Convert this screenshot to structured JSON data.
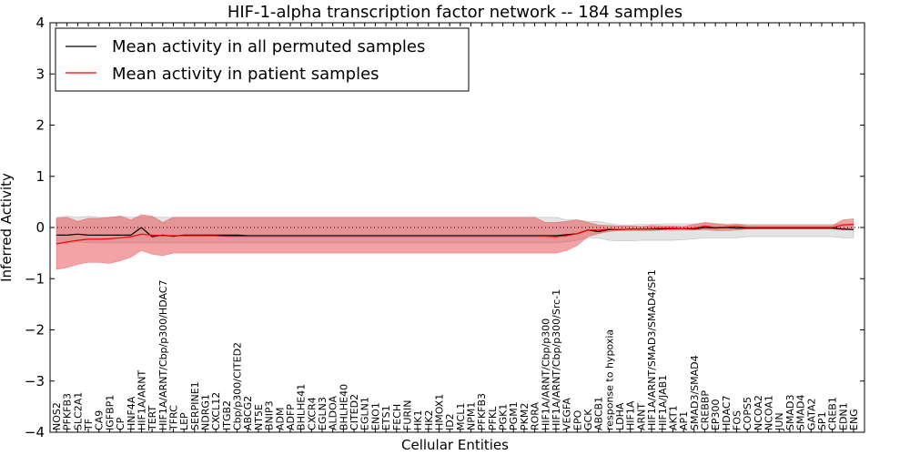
{
  "chart_data": {
    "type": "line",
    "title": "HIF-1-alpha transcription factor network -- 184 samples",
    "xlabel": "Cellular Entities",
    "ylabel": "Inferred Activity",
    "ylim": [
      -4,
      4
    ],
    "yticks": [
      "−4",
      "−3",
      "−2",
      "−1",
      "0",
      "1",
      "2",
      "3",
      "4"
    ],
    "grid": false,
    "legend_position": "top-left",
    "reference_line": 0,
    "categories": [
      "NOS2",
      "PFKFB3",
      "SLC2A1",
      "TF",
      "CA9",
      "IGFBP1",
      "CP",
      "HNF4A",
      "HIF1A/ARNT",
      "TERT",
      "HIF1A/ARNT/Cbp/p300/HDAC7",
      "TFRC",
      "LEP",
      "SERPINE1",
      "NDRG1",
      "CXCL12",
      "ITGB2",
      "Cbp/p300/CITED2",
      "ABCG2",
      "NT5E",
      "BNIP3",
      "ADM",
      "ADFP",
      "BHLHE41",
      "CXCR4",
      "EGLN3",
      "ALDOA",
      "BHLHE40",
      "CITED2",
      "EGLN1",
      "ENO1",
      "ETS1",
      "FECH",
      "FURIN",
      "HK1",
      "HK2",
      "HMOX1",
      "ID2",
      "MCL1",
      "NPM1",
      "PFKFB3",
      "PFKL",
      "PGK1",
      "PGM1",
      "PKM2",
      "RORA",
      "HIF1A/ARNT/Cbp/p300",
      "HIF1A/ARNT/Cbp/p300/Src-1",
      "VEGFA",
      "EPO",
      "GCK",
      "ABCB1",
      "response to hypoxia",
      "LDHA",
      "HIF1A",
      "ARNT",
      "HIF1A/ARNT/SMAD3/SMAD4/SP1",
      "HIF1A/JAB1",
      "AKT1",
      "AP1",
      "SMAD3/SMAD4",
      "CREBBP",
      "EP300",
      "HDAC7",
      "FOS",
      "COPS5",
      "NCOA2",
      "NCOA1",
      "JUN",
      "SMAD3",
      "SMAD4",
      "GATA2",
      "SP1",
      "CREB1",
      "EDN1",
      "ENG"
    ],
    "series": [
      {
        "name": "Mean activity in all permuted samples",
        "color": "#000000",
        "values": [
          -0.15,
          -0.15,
          -0.13,
          -0.15,
          -0.15,
          -0.15,
          -0.15,
          -0.15,
          0.0,
          -0.18,
          -0.15,
          -0.17,
          -0.15,
          -0.15,
          -0.15,
          -0.15,
          -0.15,
          -0.15,
          -0.16,
          -0.16,
          -0.16,
          -0.16,
          -0.16,
          -0.16,
          -0.16,
          -0.16,
          -0.16,
          -0.16,
          -0.16,
          -0.16,
          -0.16,
          -0.16,
          -0.16,
          -0.16,
          -0.16,
          -0.16,
          -0.16,
          -0.16,
          -0.16,
          -0.16,
          -0.16,
          -0.16,
          -0.16,
          -0.16,
          -0.16,
          -0.16,
          -0.16,
          -0.16,
          -0.14,
          -0.12,
          -0.05,
          -0.08,
          -0.04,
          -0.04,
          -0.03,
          -0.03,
          -0.03,
          -0.03,
          -0.02,
          -0.02,
          -0.03,
          0.0,
          -0.01,
          0.0,
          -0.01,
          -0.01,
          -0.01,
          -0.01,
          -0.01,
          -0.01,
          -0.01,
          -0.01,
          -0.01,
          -0.01,
          -0.03,
          -0.04
        ],
        "lower": [
          -0.3,
          -0.3,
          -0.28,
          -0.3,
          -0.3,
          -0.3,
          -0.3,
          -0.3,
          -0.3,
          -0.3,
          -0.3,
          -0.3,
          -0.3,
          -0.3,
          -0.3,
          -0.3,
          -0.3,
          -0.3,
          -0.3,
          -0.3,
          -0.3,
          -0.3,
          -0.3,
          -0.3,
          -0.3,
          -0.3,
          -0.3,
          -0.3,
          -0.3,
          -0.3,
          -0.3,
          -0.3,
          -0.3,
          -0.3,
          -0.3,
          -0.3,
          -0.3,
          -0.3,
          -0.3,
          -0.3,
          -0.3,
          -0.3,
          -0.3,
          -0.3,
          -0.3,
          -0.3,
          -0.3,
          -0.3,
          -0.28,
          -0.25,
          -0.2,
          -0.2,
          -0.25,
          -0.26,
          -0.26,
          -0.25,
          -0.25,
          -0.25,
          -0.25,
          -0.24,
          -0.22,
          -0.2,
          -0.2,
          -0.2,
          -0.2,
          -0.18,
          -0.18,
          -0.18,
          -0.18,
          -0.18,
          -0.18,
          -0.18,
          -0.18,
          -0.18,
          -0.2,
          -0.2
        ],
        "upper": [
          0.2,
          0.22,
          0.2,
          0.22,
          0.2,
          0.2,
          0.22,
          0.2,
          0.2,
          0.2,
          0.2,
          0.2,
          0.2,
          0.2,
          0.2,
          0.2,
          0.2,
          0.2,
          0.2,
          0.2,
          0.2,
          0.2,
          0.2,
          0.2,
          0.2,
          0.2,
          0.2,
          0.2,
          0.2,
          0.2,
          0.2,
          0.2,
          0.2,
          0.2,
          0.2,
          0.2,
          0.2,
          0.2,
          0.2,
          0.2,
          0.2,
          0.2,
          0.2,
          0.2,
          0.2,
          0.2,
          0.2,
          0.2,
          0.15,
          0.15,
          0.12,
          0.12,
          0.08,
          0.05,
          0.05,
          0.06,
          0.06,
          0.07,
          0.07,
          0.07,
          0.07,
          0.08,
          0.07,
          0.07,
          0.07,
          0.06,
          0.06,
          0.06,
          0.06,
          0.06,
          0.06,
          0.06,
          0.06,
          0.06,
          0.07,
          0.07
        ]
      },
      {
        "name": "Mean activity in patient samples",
        "color": "#ff0000",
        "values": [
          -0.32,
          -0.28,
          -0.25,
          -0.23,
          -0.23,
          -0.22,
          -0.2,
          -0.18,
          -0.13,
          -0.15,
          -0.16,
          -0.16,
          -0.16,
          -0.16,
          -0.16,
          -0.16,
          -0.17,
          -0.17,
          -0.17,
          -0.17,
          -0.17,
          -0.17,
          -0.17,
          -0.17,
          -0.17,
          -0.17,
          -0.17,
          -0.17,
          -0.17,
          -0.17,
          -0.17,
          -0.17,
          -0.17,
          -0.17,
          -0.17,
          -0.17,
          -0.17,
          -0.17,
          -0.17,
          -0.17,
          -0.17,
          -0.17,
          -0.17,
          -0.17,
          -0.17,
          -0.17,
          -0.17,
          -0.18,
          -0.16,
          -0.12,
          -0.05,
          -0.05,
          -0.03,
          -0.04,
          -0.03,
          -0.03,
          -0.02,
          -0.01,
          -0.01,
          -0.02,
          -0.01,
          0.03,
          0.0,
          0.01,
          0.02,
          0.0,
          0.0,
          0.0,
          0.0,
          0.0,
          0.0,
          0.0,
          0.0,
          0.0,
          0.05,
          0.06
        ],
        "lower": [
          -0.82,
          -0.78,
          -0.72,
          -0.68,
          -0.68,
          -0.7,
          -0.65,
          -0.58,
          -0.45,
          -0.52,
          -0.55,
          -0.5,
          -0.5,
          -0.5,
          -0.5,
          -0.5,
          -0.5,
          -0.5,
          -0.5,
          -0.5,
          -0.5,
          -0.5,
          -0.5,
          -0.5,
          -0.5,
          -0.5,
          -0.5,
          -0.5,
          -0.5,
          -0.5,
          -0.5,
          -0.5,
          -0.5,
          -0.5,
          -0.5,
          -0.5,
          -0.5,
          -0.5,
          -0.5,
          -0.5,
          -0.5,
          -0.5,
          -0.5,
          -0.5,
          -0.5,
          -0.5,
          -0.5,
          -0.5,
          -0.45,
          -0.35,
          -0.18,
          -0.12,
          -0.08,
          -0.06,
          -0.06,
          -0.06,
          -0.06,
          -0.05,
          -0.05,
          -0.05,
          -0.05,
          -0.04,
          -0.06,
          -0.06,
          -0.05,
          -0.03,
          -0.03,
          -0.03,
          -0.03,
          -0.03,
          -0.03,
          -0.03,
          -0.03,
          -0.03,
          -0.05,
          -0.04
        ],
        "upper": [
          0.18,
          0.2,
          0.12,
          0.18,
          0.18,
          0.2,
          0.22,
          0.15,
          0.25,
          0.22,
          0.1,
          0.2,
          0.2,
          0.2,
          0.2,
          0.2,
          0.2,
          0.2,
          0.2,
          0.2,
          0.2,
          0.2,
          0.2,
          0.2,
          0.2,
          0.2,
          0.2,
          0.2,
          0.2,
          0.2,
          0.2,
          0.2,
          0.2,
          0.2,
          0.2,
          0.2,
          0.2,
          0.2,
          0.2,
          0.2,
          0.2,
          0.2,
          0.2,
          0.2,
          0.2,
          0.2,
          0.1,
          0.1,
          0.12,
          0.15,
          0.1,
          0.05,
          0.04,
          0.03,
          0.03,
          0.02,
          0.04,
          0.03,
          0.03,
          0.02,
          0.06,
          0.1,
          0.08,
          0.05,
          0.06,
          0.04,
          0.04,
          0.04,
          0.04,
          0.04,
          0.04,
          0.04,
          0.04,
          0.04,
          0.15,
          0.17
        ]
      }
    ]
  }
}
